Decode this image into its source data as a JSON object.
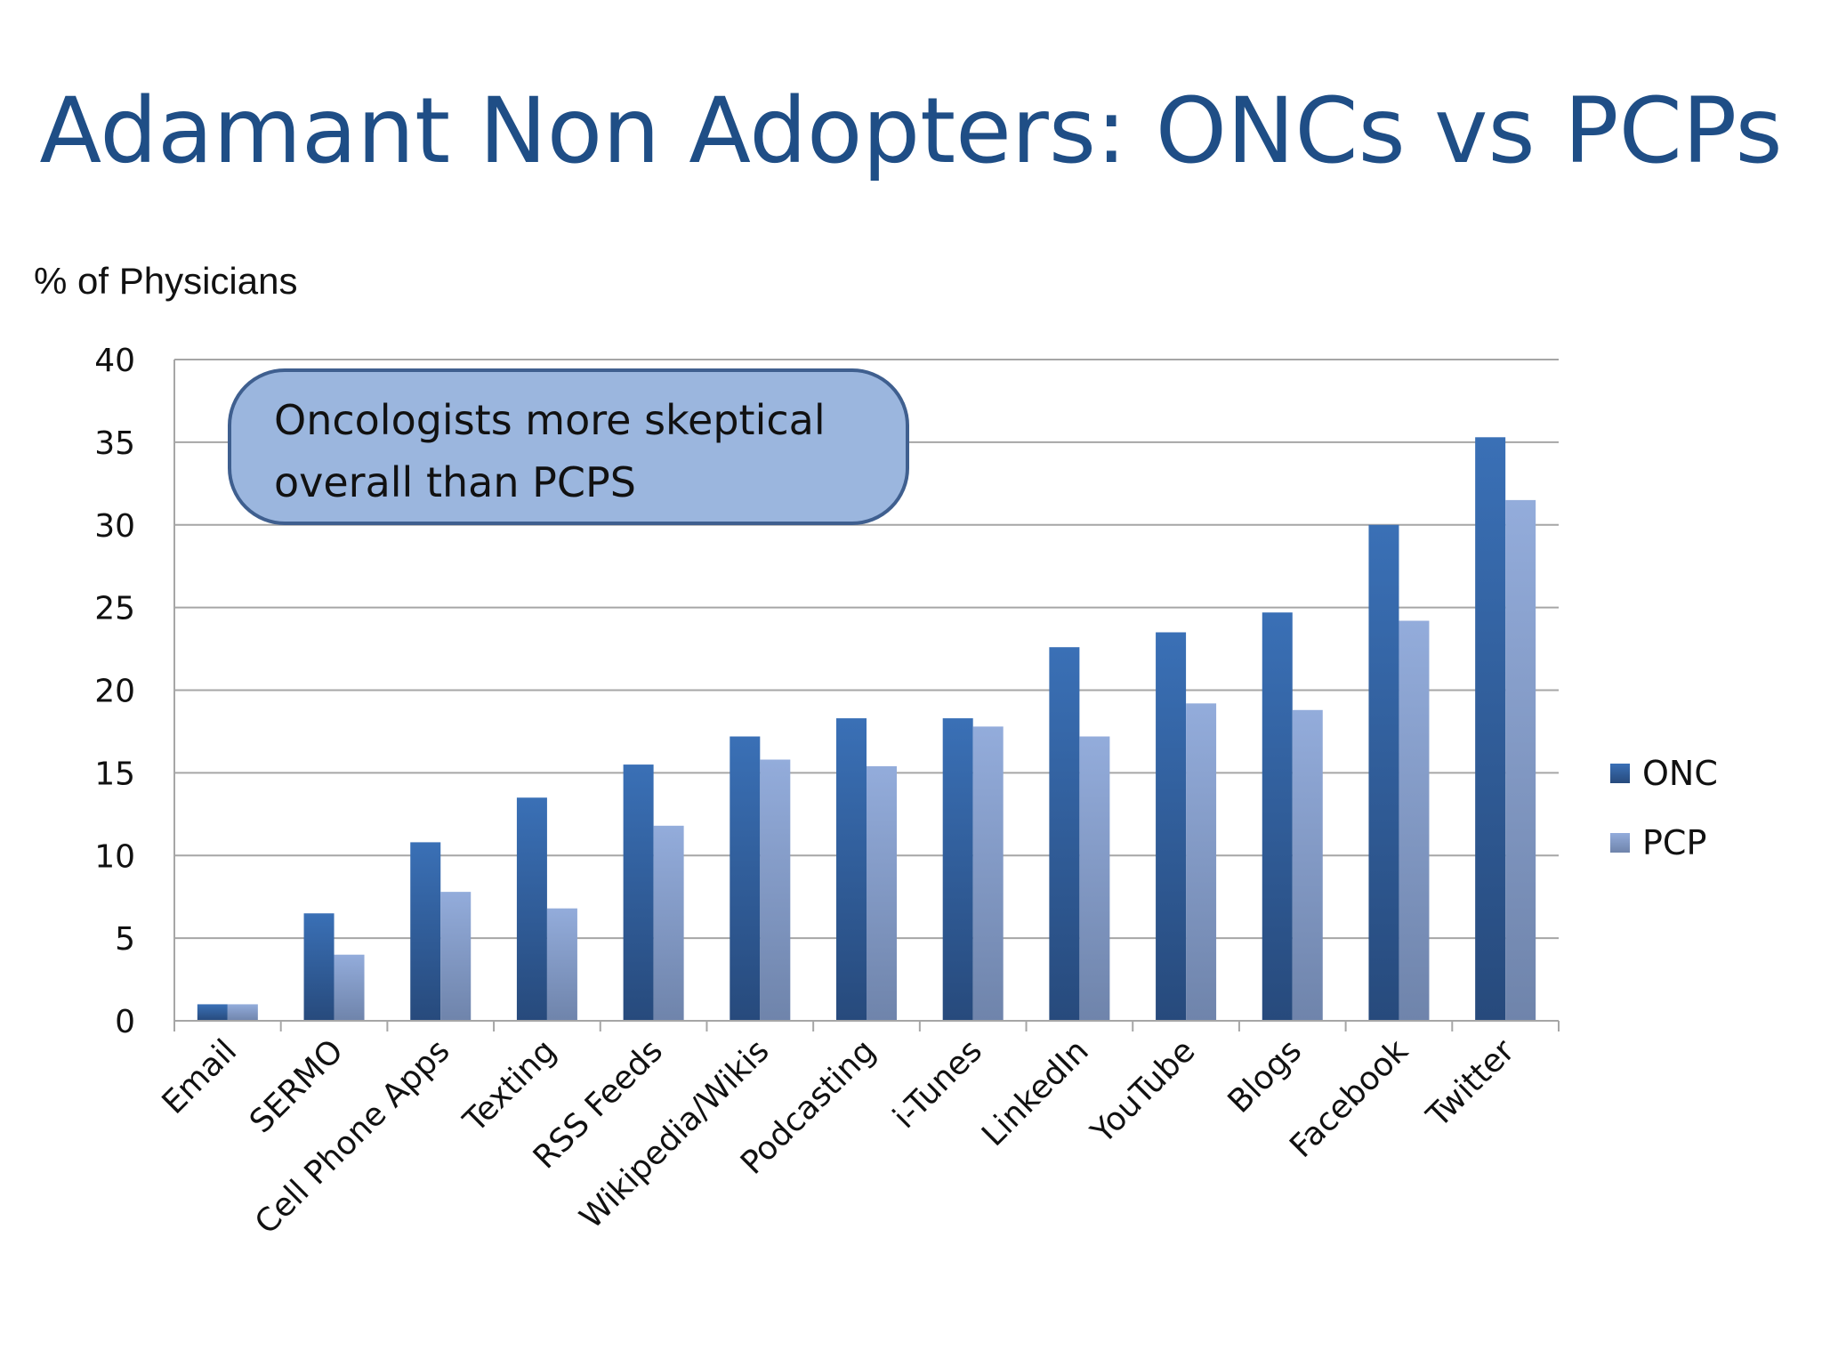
{
  "title": "Adamant Non Adopters: ONCs vs PCPs",
  "colors": {
    "title": "#1f4e86",
    "onc_top": "#3a70b6",
    "onc_bottom": "#274a7c",
    "pcp_top": "#93acdb",
    "pcp_bottom": "#6f84ab",
    "callout_fill": "#9bb6de",
    "callout_stroke": "#3f5f8f",
    "grid": "#a6a6a6"
  },
  "callout": {
    "line1": "Oncologists more skeptical",
    "line2": "overall than PCPS"
  },
  "chart_data": {
    "type": "bar",
    "title": "",
    "ylabel": "% of Physicians",
    "xlabel": "",
    "ylim": [
      0,
      40
    ],
    "yticks": [
      0,
      5,
      10,
      15,
      20,
      25,
      30,
      35,
      40
    ],
    "grid": true,
    "legend_position": "right",
    "categories": [
      "Email",
      "SERMO",
      "Cell Phone Apps",
      "Texting",
      "RSS Feeds",
      "Wikipedia/Wikis",
      "Podcasting",
      "i-Tunes",
      "LinkedIn",
      "YouTube",
      "Blogs",
      "Facebook",
      "Twitter"
    ],
    "series": [
      {
        "name": "ONC",
        "values": [
          1,
          6.5,
          10.8,
          13.5,
          15.5,
          17.2,
          18.3,
          18.3,
          22.6,
          23.5,
          24.7,
          30,
          35.3
        ]
      },
      {
        "name": "PCP",
        "values": [
          1,
          4,
          7.8,
          6.8,
          11.8,
          15.8,
          15.4,
          17.8,
          17.2,
          19.2,
          18.8,
          24.2,
          31.5
        ]
      }
    ]
  }
}
